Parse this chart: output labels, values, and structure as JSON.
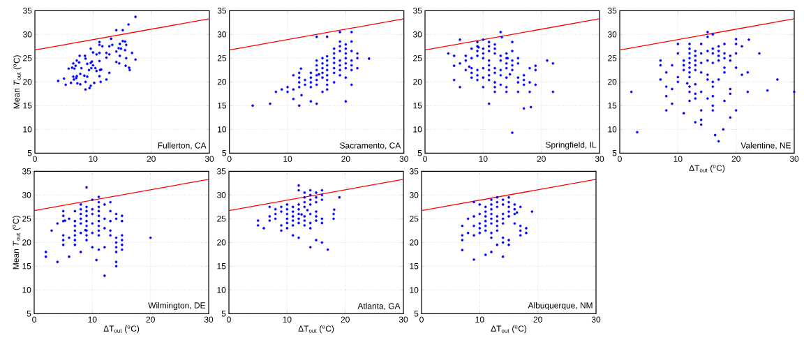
{
  "chart_data": [
    {
      "type": "scatter",
      "ylabel": "Mean *T*$_{out}$ ($^{o}$C)",
      "annotations": [
        "Fullerton, CA"
      ],
      "xlim": [
        0,
        30
      ],
      "ylim": [
        5,
        35
      ],
      "xticks": [
        0,
        10,
        20,
        30
      ],
      "yticks": [
        5,
        10,
        15,
        20,
        25,
        30,
        35
      ],
      "grid": true,
      "series": [
        {
          "color": "#0000ff",
          "marker": "circle",
          "x": [
            17.3,
            16.1,
            14.0,
            15.1,
            13.1,
            11.1,
            11.1,
            11.6,
            13.3,
            12.8,
            14.6,
            15.1,
            15.5,
            15.7,
            14.4,
            14.8,
            9.6,
            14.0,
            15.5,
            16.7,
            10.0,
            10.6,
            11.1,
            12.3,
            12.8,
            12.3,
            14.6,
            15.7,
            17.3,
            14.0,
            14.5,
            15.6,
            16.2,
            16.3,
            7.7,
            8.6,
            8.7,
            6.6,
            7.2,
            7.6,
            7.0,
            5.8,
            6.4,
            6.8,
            8.0,
            9.0,
            9.6,
            9.3,
            9.8,
            10.0,
            9.7,
            10.4,
            10.6,
            11.2,
            11.1,
            11.4,
            12.8,
            7.8,
            8.5,
            9.0,
            6.6,
            7.2,
            6.7,
            7.1,
            4.0,
            5.0,
            5.3,
            6.2,
            7.3,
            7.8,
            8.7,
            10.2,
            11.3,
            12.3,
            11.1,
            8.7,
            9.4,
            9.6
          ],
          "values": [
            33.7,
            32.1,
            30.9,
            30.9,
            29.1,
            28.4,
            27.8,
            27.5,
            27.8,
            27.5,
            28.0,
            28.6,
            28.5,
            27.8,
            27.1,
            27.0,
            27.0,
            26.4,
            26.7,
            26.1,
            26.2,
            25.8,
            26.1,
            26.1,
            25.8,
            25.1,
            25.5,
            25.0,
            24.7,
            24.2,
            23.9,
            23.4,
            23.0,
            22.5,
            25.5,
            25.5,
            24.9,
            23.9,
            24.5,
            24.1,
            23.4,
            22.8,
            23.0,
            22.8,
            22.9,
            23.8,
            24.0,
            22.5,
            24.3,
            23.5,
            22.9,
            22.9,
            22.3,
            22.5,
            24.4,
            22.6,
            21.9,
            21.7,
            21.3,
            21.1,
            21.1,
            21.2,
            20.5,
            20.8,
            20.2,
            20.7,
            19.4,
            19.8,
            19.7,
            19.5,
            20.0,
            19.8,
            20.0,
            20.5,
            21.2,
            18.4,
            18.7,
            19.2
          ]
        },
        {
          "type": "line",
          "color": "#ff0000",
          "x": [
            0,
            30
          ],
          "values": [
            26.7,
            33.3
          ]
        }
      ]
    },
    {
      "type": "scatter",
      "annotations": [
        "Sacramento, CA"
      ],
      "xlim": [
        0,
        30
      ],
      "ylim": [
        5,
        35
      ],
      "xticks": [
        0,
        10,
        20,
        30
      ],
      "yticks": [
        5,
        10,
        15,
        20,
        25,
        30,
        35
      ],
      "grid": true,
      "series": [
        {
          "color": "#0000ff",
          "marker": "circle",
          "x": [
            4.0,
            7.0,
            8.0,
            9.0,
            10.0,
            10.0,
            11.0,
            11.0,
            11.0,
            12.0,
            12.0,
            12.0,
            12.0,
            12.0,
            12.3,
            12.4,
            13.0,
            13.0,
            14.0,
            14.0,
            14.0,
            14.0,
            14.0,
            15.0,
            15.0,
            15.0,
            15.0,
            15.0,
            15.0,
            15.0,
            15.0,
            15.4,
            16.0,
            16.0,
            16.0,
            16.0,
            16.0,
            16.0,
            16.8,
            16.8,
            16.8,
            16.8,
            16.8,
            16.8,
            16.8,
            16.8,
            16.8,
            18.0,
            18.0,
            18.0,
            18.0,
            18.0,
            18.0,
            18.0,
            19.0,
            19.0,
            19.0,
            19.0,
            19.0,
            19.0,
            19.0,
            19.0,
            20.0,
            20.0,
            20.0,
            20.0,
            20.0,
            20.0,
            20.0,
            20.0,
            21.0,
            21.0,
            21.0,
            21.0,
            21.0,
            21.0,
            21.0,
            22.0,
            22.0,
            22.0,
            24.0
          ],
          "values": [
            15.0,
            15.4,
            17.9,
            18.4,
            18.9,
            17.9,
            18.4,
            21.4,
            16.4,
            15.0,
            21.9,
            20.9,
            19.9,
            18.9,
            22.8,
            17.2,
            20.4,
            19.4,
            21.9,
            20.9,
            19.9,
            18.9,
            15.9,
            15.4,
            24.5,
            23.5,
            22.5,
            21.4,
            20.4,
            19.4,
            29.5,
            21.6,
            25.0,
            23.9,
            22.9,
            21.9,
            20.9,
            17.9,
            29.5,
            25.4,
            24.5,
            23.5,
            22.5,
            21.4,
            20.4,
            19.4,
            18.4,
            27.0,
            26.0,
            25.0,
            24.0,
            22.9,
            21.9,
            19.9,
            30.5,
            28.5,
            27.5,
            26.5,
            24.5,
            23.5,
            22.5,
            21.4,
            27.9,
            27.0,
            26.0,
            25.0,
            23.9,
            22.9,
            20.9,
            15.9,
            30.5,
            28.5,
            26.5,
            24.5,
            23.5,
            22.5,
            19.4,
            26.0,
            25.0,
            22.9,
            24.9
          ]
        },
        {
          "type": "line",
          "color": "#ff0000",
          "x": [
            0,
            30
          ],
          "values": [
            26.7,
            33.3
          ]
        }
      ]
    },
    {
      "type": "scatter",
      "annotations": [
        "Springfield, IL"
      ],
      "xlim": [
        0,
        30
      ],
      "ylim": [
        5,
        35
      ],
      "xticks": [
        0,
        10,
        20,
        30
      ],
      "yticks": [
        5,
        10,
        15,
        20,
        25,
        30,
        35
      ],
      "grid": true,
      "series": [
        {
          "color": "#0000ff",
          "marker": "circle",
          "x": [
            4.0,
            5.0,
            5.0,
            5.0,
            6.0,
            6.0,
            6.0,
            7.0,
            7.0,
            7.0,
            7.6,
            8.0,
            8.0,
            8.0,
            8.0,
            8.0,
            9.0,
            9.0,
            9.0,
            9.0,
            9.0,
            9.0,
            9.0,
            9.2,
            10.0,
            10.0,
            10.0,
            10.0,
            10.0,
            10.0,
            10.0,
            11.0,
            11.0,
            11.0,
            11.0,
            11.0,
            11.0,
            11.0,
            11.0,
            11.0,
            12.0,
            12.0,
            12.0,
            12.0,
            12.0,
            12.0,
            12.0,
            12.0,
            13.0,
            13.2,
            13.0,
            13.0,
            13.0,
            13.0,
            13.0,
            14.0,
            14.0,
            14.0,
            14.0,
            14.0,
            14.0,
            14.0,
            14.2,
            14.6,
            15.0,
            15.0,
            15.0,
            15.0,
            15.0,
            15.0,
            16.0,
            16.0,
            16.0,
            16.0,
            16.0,
            17.0,
            17.0,
            17.0,
            17.0,
            18.0,
            18.0,
            18.0,
            18.2,
            19.0,
            19.0,
            19.0,
            21.0,
            22.0,
            22.0
          ],
          "values": [
            26.0,
            25.5,
            23.4,
            20.4,
            28.9,
            23.9,
            18.9,
            25.5,
            24.5,
            22.5,
            23.2,
            27.0,
            25.0,
            22.9,
            21.9,
            20.9,
            28.4,
            27.5,
            26.5,
            25.5,
            22.5,
            21.4,
            20.4,
            27.3,
            28.9,
            27.0,
            26.0,
            25.0,
            22.9,
            20.9,
            18.9,
            28.4,
            27.5,
            26.5,
            24.5,
            23.5,
            22.5,
            21.4,
            20.4,
            15.4,
            27.9,
            27.0,
            26.0,
            22.9,
            21.9,
            19.9,
            18.9,
            17.9,
            30.5,
            29.4,
            25.5,
            24.5,
            22.5,
            21.4,
            19.4,
            26.0,
            25.0,
            23.9,
            22.9,
            20.9,
            18.9,
            17.9,
            25.0,
            21.6,
            28.4,
            26.5,
            24.5,
            23.5,
            22.5,
            9.3,
            25.0,
            23.9,
            20.9,
            19.9,
            17.9,
            21.4,
            20.4,
            19.4,
            14.4,
            22.9,
            19.9,
            17.9,
            14.7,
            23.4,
            22.5,
            19.4,
            24.5,
            23.9,
            17.9
          ]
        },
        {
          "type": "line",
          "color": "#ff0000",
          "x": [
            0,
            30
          ],
          "values": [
            26.7,
            33.3
          ]
        }
      ]
    },
    {
      "type": "scatter",
      "xlabel": "ΔT$_{out}$ ($^{o}$C)",
      "annotations": [
        "Valentine, NE"
      ],
      "xlim": [
        0,
        30
      ],
      "ylim": [
        5,
        35
      ],
      "xticks": [
        0,
        10,
        20,
        30
      ],
      "yticks": [
        5,
        10,
        15,
        20,
        25,
        30,
        35
      ],
      "grid": true,
      "series": [
        {
          "color": "#0000ff",
          "marker": "circle",
          "x": [
            2.0,
            3.0,
            7.0,
            7.0,
            7.0,
            8.0,
            8.0,
            8.0,
            8.0,
            9.0,
            9.0,
            9.0,
            10.0,
            10.0,
            10.0,
            10.0,
            11.0,
            11.0,
            11.0,
            11.0,
            11.6,
            12.0,
            12.0,
            12.0,
            12.0,
            12.0,
            12.0,
            12.0,
            12.0,
            12.0,
            12.0,
            12.0,
            13.0,
            13.0,
            13.0,
            13.0,
            13.0,
            13.0,
            13.0,
            13.0,
            13.0,
            14.0,
            14.0,
            14.0,
            14.0,
            14.0,
            14.0,
            14.0,
            14.0,
            15.1,
            15.1,
            15.1,
            15.1,
            15.1,
            15.1,
            15.1,
            16.0,
            16.0,
            16.0,
            16.0,
            16.0,
            16.0,
            16.0,
            16.0,
            16.0,
            16.4,
            17.0,
            17.0,
            17.0,
            17.0,
            17.0,
            17.0,
            18.0,
            18.0,
            18.0,
            18.0,
            18.0,
            18.0,
            17.8,
            19.0,
            19.0,
            19.0,
            19.0,
            19.0,
            20.0,
            20.0,
            20.0,
            20.0,
            20.0,
            21.0,
            21.0,
            22.0,
            22.0,
            22.2,
            24.0,
            25.4,
            27.1,
            30.0
          ],
          "values": [
            17.9,
            9.4,
            24.5,
            23.5,
            20.5,
            22.0,
            19.0,
            17.0,
            14.0,
            23.5,
            18.5,
            15.4,
            28.0,
            26.0,
            21.0,
            20.0,
            24.5,
            23.5,
            22.5,
            13.4,
            19.7,
            28.0,
            27.0,
            26.0,
            25.0,
            24.0,
            23.0,
            22.0,
            21.0,
            19.0,
            17.9,
            16.0,
            26.5,
            25.5,
            24.5,
            23.5,
            22.5,
            19.5,
            17.5,
            16.5,
            11.5,
            28.0,
            26.0,
            24.0,
            22.0,
            17.9,
            14.0,
            12.0,
            11.0,
            30.5,
            29.5,
            26.5,
            24.5,
            21.5,
            20.5,
            16.5,
            30.0,
            27.0,
            26.0,
            24.0,
            20.0,
            19.0,
            17.0,
            15.0,
            14.0,
            8.8,
            27.5,
            26.5,
            25.5,
            24.5,
            20.5,
            7.5,
            28.0,
            26.0,
            25.0,
            23.0,
            22.0,
            16.0,
            10.0,
            25.5,
            24.5,
            18.5,
            17.5,
            12.5,
            29.0,
            28.0,
            26.0,
            23.0,
            14.0,
            27.5,
            21.5,
            22.0,
            17.9,
            28.9,
            26.0,
            18.2,
            20.5,
            17.9
          ]
        },
        {
          "type": "line",
          "color": "#ff0000",
          "x": [
            0,
            30
          ],
          "values": [
            26.7,
            33.3
          ]
        }
      ]
    },
    {
      "type": "scatter",
      "xlabel": "ΔT$_{out}$ ($^{o}$C)",
      "ylabel": "Mean *T*$_{out}$ ($^{o}$C)",
      "annotations": [
        "Wilmington, DE"
      ],
      "xlim": [
        0,
        30
      ],
      "ylim": [
        5,
        35
      ],
      "xticks": [
        0,
        10,
        20,
        30
      ],
      "yticks": [
        5,
        10,
        15,
        20,
        25,
        30,
        35
      ],
      "grid": true,
      "series": [
        {
          "color": "#0000ff",
          "marker": "circle",
          "x": [
            2.0,
            2.0,
            3.0,
            4.0,
            4.0,
            5.0,
            5.0,
            5.0,
            5.0,
            5.0,
            5.0,
            5.3,
            6.0,
            6.0,
            6.0,
            7.0,
            7.0,
            7.0,
            7.0,
            7.0,
            7.0,
            7.0,
            8.0,
            8.0,
            8.0,
            8.0,
            8.0,
            8.0,
            8.0,
            8.8,
            9.0,
            9.0,
            9.0,
            9.0,
            9.0,
            9.0,
            9.0,
            9.0,
            9.0,
            10.0,
            10.0,
            10.0,
            10.0,
            10.0,
            10.0,
            10.7,
            11.1,
            11.1,
            11.1,
            11.1,
            11.1,
            11.1,
            11.1,
            11.1,
            11.1,
            11.1,
            12.1,
            12.1,
            12.1,
            12.1,
            12.1,
            13.1,
            13.1,
            13.1,
            13.1,
            13.1,
            14.1,
            14.1,
            14.1,
            14.1,
            14.1,
            14.1,
            14.1,
            14.1,
            15.1,
            15.1,
            15.1,
            15.1,
            15.1,
            15.1,
            20.0
          ],
          "values": [
            18.0,
            17.0,
            22.5,
            24.0,
            15.9,
            26.6,
            25.6,
            24.5,
            21.5,
            20.5,
            19.5,
            24.6,
            25.0,
            21.0,
            17.0,
            26.6,
            24.5,
            23.5,
            22.5,
            21.5,
            20.5,
            19.5,
            28.0,
            27.0,
            26.0,
            25.0,
            24.0,
            22.0,
            18.0,
            22.6,
            31.6,
            27.5,
            26.6,
            25.6,
            24.5,
            23.5,
            22.5,
            21.5,
            20.5,
            29.0,
            27.0,
            26.0,
            24.0,
            22.0,
            19.0,
            16.3,
            29.6,
            28.5,
            27.5,
            26.6,
            25.6,
            24.5,
            23.5,
            22.5,
            21.5,
            18.5,
            28.0,
            25.0,
            23.0,
            19.0,
            13.0,
            28.5,
            26.6,
            24.5,
            22.5,
            21.5,
            26.0,
            25.0,
            21.0,
            20.0,
            19.0,
            18.0,
            15.9,
            15.0,
            25.6,
            24.5,
            21.5,
            20.5,
            19.5,
            18.5,
            21.0
          ]
        },
        {
          "type": "line",
          "color": "#ff0000",
          "x": [
            0,
            30
          ],
          "values": [
            26.7,
            33.3
          ]
        }
      ]
    },
    {
      "type": "scatter",
      "xlabel": "ΔT$_{out}$ ($^{o}$C)",
      "annotations": [
        "Atlanta, GA"
      ],
      "xlim": [
        0,
        30
      ],
      "ylim": [
        5,
        35
      ],
      "xticks": [
        0,
        10,
        20,
        30
      ],
      "yticks": [
        5,
        10,
        15,
        20,
        25,
        30,
        35
      ],
      "grid": true,
      "series": [
        {
          "color": "#0000ff",
          "marker": "circle",
          "x": [
            5.0,
            5.0,
            6.0,
            7.0,
            7.0,
            7.0,
            8.0,
            8.0,
            8.0,
            9.0,
            9.0,
            9.0,
            9.0,
            10.0,
            10.0,
            10.0,
            10.0,
            10.0,
            10.0,
            11.0,
            11.0,
            11.0,
            11.0,
            11.0,
            11.0,
            12.0,
            12.0,
            12.0,
            12.0,
            12.0,
            12.0,
            12.0,
            12.0,
            12.5,
            13.0,
            13.0,
            13.0,
            13.0,
            13.0,
            13.0,
            13.0,
            13.5,
            14.0,
            14.0,
            14.0,
            14.0,
            14.0,
            14.0,
            14.0,
            14.0,
            15.0,
            15.0,
            15.0,
            15.0,
            15.0,
            15.0,
            15.0,
            16.0,
            16.0,
            16.0,
            16.0,
            16.0,
            16.0,
            17.0,
            18.0,
            18.0,
            18.1,
            19.0
          ],
          "values": [
            24.6,
            23.6,
            23.0,
            27.5,
            25.5,
            24.6,
            27.0,
            26.0,
            25.0,
            27.5,
            26.5,
            23.6,
            22.5,
            28.0,
            27.0,
            26.0,
            25.0,
            24.1,
            23.0,
            27.5,
            26.5,
            25.5,
            24.6,
            23.6,
            21.5,
            32.0,
            31.0,
            28.0,
            27.0,
            26.0,
            25.0,
            24.1,
            21.0,
            25.9,
            30.5,
            29.5,
            28.5,
            27.5,
            25.5,
            24.6,
            23.6,
            26.8,
            31.0,
            30.0,
            29.0,
            28.0,
            26.0,
            24.1,
            23.0,
            19.0,
            30.5,
            29.5,
            28.5,
            26.5,
            25.5,
            24.6,
            20.5,
            31.0,
            30.0,
            29.0,
            25.0,
            24.1,
            20.0,
            18.5,
            26.0,
            25.0,
            26.9,
            29.5
          ]
        },
        {
          "type": "line",
          "color": "#ff0000",
          "x": [
            0,
            30
          ],
          "values": [
            26.7,
            33.3
          ]
        }
      ]
    },
    {
      "type": "scatter",
      "xlabel": "ΔT$_{out}$ ($^{o}$C)",
      "annotations": [
        "Albuquerque, NM"
      ],
      "xlim": [
        0,
        30
      ],
      "ylim": [
        5,
        35
      ],
      "xticks": [
        0,
        10,
        20,
        30
      ],
      "yticks": [
        5,
        10,
        15,
        20,
        25,
        30,
        35
      ],
      "grid": true,
      "series": [
        {
          "color": "#0000ff",
          "marker": "circle",
          "x": [
            7.0,
            7.0,
            7.0,
            7.0,
            8.0,
            8.0,
            9.0,
            9.0,
            9.0,
            9.0,
            9.0,
            10.0,
            10.0,
            10.0,
            10.0,
            10.0,
            11.0,
            11.0,
            11.0,
            11.0,
            11.0,
            11.0,
            11.0,
            12.0,
            12.0,
            12.0,
            12.0,
            12.0,
            12.0,
            12.0,
            12.0,
            12.0,
            13.0,
            13.0,
            13.0,
            13.0,
            13.0,
            13.0,
            13.0,
            13.0,
            14.0,
            14.0,
            14.0,
            14.0,
            14.0,
            14.0,
            14.0,
            14.0,
            15.0,
            15.0,
            15.0,
            15.0,
            15.0,
            15.0,
            15.0,
            16.0,
            16.0,
            16.0,
            16.0,
            16.4,
            17.0,
            17.0,
            17.0,
            17.0,
            18.0,
            18.0,
            19.0
          ],
          "values": [
            23.5,
            21.5,
            20.5,
            18.4,
            25.0,
            22.0,
            28.5,
            25.5,
            23.5,
            21.5,
            16.4,
            28.0,
            26.0,
            24.0,
            23.0,
            22.0,
            27.5,
            26.5,
            25.5,
            24.5,
            23.5,
            22.5,
            17.4,
            29.0,
            28.0,
            27.0,
            26.0,
            25.0,
            24.0,
            22.0,
            21.0,
            18.0,
            29.5,
            28.5,
            27.5,
            25.5,
            24.5,
            23.5,
            22.5,
            19.5,
            29.0,
            28.0,
            26.0,
            25.0,
            24.0,
            21.0,
            20.0,
            17.0,
            29.5,
            28.5,
            27.5,
            26.5,
            25.5,
            20.5,
            19.5,
            28.0,
            27.0,
            26.0,
            24.0,
            26.3,
            27.5,
            23.5,
            22.5,
            21.5,
            23.0,
            22.0,
            26.5
          ]
        },
        {
          "type": "line",
          "color": "#ff0000",
          "x": [
            0,
            30
          ],
          "values": [
            26.7,
            33.3
          ]
        }
      ]
    }
  ]
}
